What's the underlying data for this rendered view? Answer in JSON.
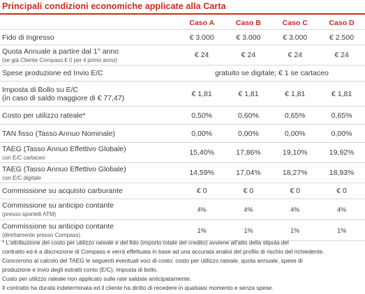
{
  "title": "Principali condizioni economiche applicate alla Carta",
  "columns": [
    "Caso A",
    "Caso B",
    "Caso C",
    "Caso D"
  ],
  "rows": {
    "fido": {
      "label": "Fido di Ingresso",
      "values": [
        "€ 3.000",
        "€ 3.000",
        "€ 3.000",
        "€ 2.500"
      ]
    },
    "quota": {
      "label": "Quota Annuale a partire dal 1° anno",
      "sub": "(se già Cliente Compass € 0 per il primo anno)",
      "values": [
        "€ 24",
        "€ 24",
        "€ 24",
        "€ 24"
      ]
    },
    "spese": {
      "label": "Spese produzione ed Invio E/C",
      "value": "gratuito se digitale; € 1 se cartaceo"
    },
    "bollo": {
      "label": "Imposta di Bollo su E/C",
      "label2": "(in caso di saldo maggiore di € 77,47)",
      "values": [
        "€ 1,81",
        "€ 1,81",
        "€ 1,81",
        "€ 1,81"
      ]
    },
    "costo": {
      "label": "Costo per utilizzo rateale*",
      "values": [
        "0,50%",
        "0,60%",
        "0,65%",
        "0,65%"
      ]
    },
    "tan": {
      "label": "TAN fisso (Tasso Annuo Nominale)",
      "values": [
        "0,00%",
        "0,00%",
        "0,00%",
        "0,00%"
      ]
    },
    "taeg1": {
      "label": "TAEG (Tasso Annuo Effettivo Globale)",
      "sub": "con E/C cartaceo",
      "values": [
        "15,40%",
        "17,86%",
        "19,10%",
        "19,92%"
      ]
    },
    "taeg2": {
      "label": "TAEG (Tasso Annuo Effettivo Globale)",
      "sub": "con E/C digitale",
      "values": [
        "14,59%",
        "17,04%",
        "18,27%",
        "18,93%"
      ]
    },
    "carb": {
      "label": "Commissione su acquisto carburante",
      "values": [
        "€ 0",
        "€ 0",
        "€ 0",
        "€ 0"
      ]
    },
    "anticipo1": {
      "label": "Commissione su anticipo contante",
      "sub": "(presso sportelli ATM)",
      "values": [
        "4%",
        "4%",
        "4%",
        "4%"
      ]
    },
    "anticipo2": {
      "label": "Commissione su anticipo contante",
      "sub": "(direttamente presso Compass)",
      "values": [
        "1%",
        "1%",
        "1%",
        "1%"
      ]
    }
  },
  "notes": {
    "line1": "* L'attribuzione del costo per utilizzo rateale e del fido (importo totale del credito) avviene all'atto della stipula del",
    "line2": "contratto ed è a discrezione di Compass e verrà effettuata in base ad una accurata analisi del profilo di rischio del richiedente.",
    "line3": "Concorrono al calcolo del TAEG le seguenti eventuali voci di costo: costo per utilizzo rateale, quota annuale, spese di",
    "line4": "produzione e invio degli estratti conto (E/C), imposta di bollo.",
    "line5": "Costo per utilizzo rateale non applicato sulle rate saldate anticipatamente.",
    "line6": "Il contratto ha durata indeterminata ed il cliente ha diritto di recedere in qualsiasi momento e senza spese."
  }
}
